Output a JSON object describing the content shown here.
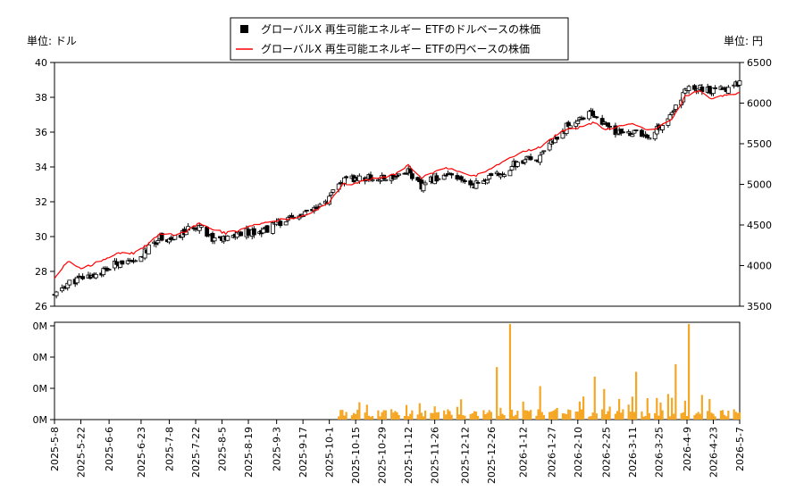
{
  "chart_data": [
    {
      "type": "candlestick+line",
      "left_unit_label": "単位: ドル",
      "right_unit_label": "単位: 円",
      "legend_placement": "top-center",
      "legend": [
        {
          "name": "グローバルX 再生可能エネルギー ETFのドルベースの株価",
          "marker": "square",
          "color": "#000000"
        },
        {
          "name": "グローバルX 再生可能エネルギー ETFの円ベースの株価",
          "marker": "line",
          "color": "#ff0000"
        }
      ],
      "ylim_left": [
        26,
        40
      ],
      "yticks_left": [
        "26",
        "28",
        "30",
        "32",
        "34",
        "36",
        "38",
        "40"
      ],
      "ylim_right": [
        3500,
        6500
      ],
      "yticks_right": [
        "3500",
        "4000",
        "4500",
        "5000",
        "5500",
        "6000",
        "6500"
      ],
      "grid": false,
      "keypoints_close_usd": [
        [
          "2025-05-08",
          26.6
        ],
        [
          "2025-05-15",
          27.3
        ],
        [
          "2025-05-22",
          27.6
        ],
        [
          "2025-05-29",
          27.8
        ],
        [
          "2025-06-05",
          28.1
        ],
        [
          "2025-06-12",
          28.6
        ],
        [
          "2025-06-19",
          28.4
        ],
        [
          "2025-06-26",
          29.2
        ],
        [
          "2025-07-03",
          30.0
        ],
        [
          "2025-07-10",
          29.8
        ],
        [
          "2025-07-17",
          30.3
        ],
        [
          "2025-07-24",
          30.7
        ],
        [
          "2025-07-31",
          29.9
        ],
        [
          "2025-08-07",
          29.8
        ],
        [
          "2025-08-14",
          30.2
        ],
        [
          "2025-08-21",
          30.3
        ],
        [
          "2025-08-28",
          30.4
        ],
        [
          "2025-09-04",
          30.8
        ],
        [
          "2025-09-11",
          31.0
        ],
        [
          "2025-09-18",
          31.3
        ],
        [
          "2025-09-25",
          31.6
        ],
        [
          "2025-10-01",
          32.2
        ],
        [
          "2025-10-08",
          33.2
        ],
        [
          "2025-10-15",
          33.3
        ],
        [
          "2025-10-22",
          33.4
        ],
        [
          "2025-10-29",
          33.3
        ],
        [
          "2025-11-05",
          33.5
        ],
        [
          "2025-11-12",
          33.8
        ],
        [
          "2025-11-19",
          32.8
        ],
        [
          "2025-11-26",
          33.4
        ],
        [
          "2025-12-03",
          33.5
        ],
        [
          "2025-12-10",
          33.2
        ],
        [
          "2025-12-17",
          33.0
        ],
        [
          "2025-12-24",
          33.3
        ],
        [
          "2025-12-31",
          33.6
        ],
        [
          "2026-01-07",
          34.1
        ],
        [
          "2026-01-14",
          34.4
        ],
        [
          "2026-01-21",
          34.5
        ],
        [
          "2026-01-28",
          35.5
        ],
        [
          "2026-02-04",
          36.3
        ],
        [
          "2026-02-11",
          36.8
        ],
        [
          "2026-02-18",
          37.1
        ],
        [
          "2026-02-25",
          36.3
        ],
        [
          "2026-03-04",
          35.9
        ],
        [
          "2026-03-11",
          36.0
        ],
        [
          "2026-03-18",
          35.7
        ],
        [
          "2026-03-25",
          36.2
        ],
        [
          "2026-04-01",
          37.0
        ],
        [
          "2026-04-08",
          38.4
        ],
        [
          "2026-04-15",
          38.6
        ],
        [
          "2026-04-22",
          38.3
        ],
        [
          "2026-04-29",
          38.5
        ],
        [
          "2026-05-07",
          38.9
        ]
      ],
      "keypoints_close_jpy": [
        [
          "2025-05-08",
          3850
        ],
        [
          "2025-05-15",
          4050
        ],
        [
          "2025-05-22",
          3970
        ],
        [
          "2025-05-29",
          4020
        ],
        [
          "2025-06-05",
          4100
        ],
        [
          "2025-06-12",
          4160
        ],
        [
          "2025-06-19",
          4150
        ],
        [
          "2025-06-26",
          4250
        ],
        [
          "2025-07-03",
          4400
        ],
        [
          "2025-07-10",
          4380
        ],
        [
          "2025-07-17",
          4420
        ],
        [
          "2025-07-24",
          4530
        ],
        [
          "2025-07-31",
          4450
        ],
        [
          "2025-08-07",
          4400
        ],
        [
          "2025-08-14",
          4430
        ],
        [
          "2025-08-21",
          4490
        ],
        [
          "2025-08-28",
          4520
        ],
        [
          "2025-09-04",
          4560
        ],
        [
          "2025-09-11",
          4580
        ],
        [
          "2025-09-18",
          4620
        ],
        [
          "2025-09-25",
          4700
        ],
        [
          "2025-10-01",
          4780
        ],
        [
          "2025-10-08",
          5000
        ],
        [
          "2025-10-15",
          5010
        ],
        [
          "2025-10-22",
          5060
        ],
        [
          "2025-10-29",
          5080
        ],
        [
          "2025-11-05",
          5130
        ],
        [
          "2025-11-12",
          5240
        ],
        [
          "2025-11-19",
          5080
        ],
        [
          "2025-11-26",
          5150
        ],
        [
          "2025-12-03",
          5200
        ],
        [
          "2025-12-10",
          5150
        ],
        [
          "2025-12-17",
          5100
        ],
        [
          "2025-12-24",
          5180
        ],
        [
          "2025-12-31",
          5250
        ],
        [
          "2026-01-07",
          5350
        ],
        [
          "2026-01-14",
          5420
        ],
        [
          "2026-01-21",
          5450
        ],
        [
          "2026-01-28",
          5580
        ],
        [
          "2026-02-04",
          5680
        ],
        [
          "2026-02-11",
          5700
        ],
        [
          "2026-02-18",
          5760
        ],
        [
          "2026-02-25",
          5680
        ],
        [
          "2026-03-04",
          5720
        ],
        [
          "2026-03-11",
          5740
        ],
        [
          "2026-03-18",
          5680
        ],
        [
          "2026-03-25",
          5700
        ],
        [
          "2026-04-01",
          5800
        ],
        [
          "2026-04-08",
          6080
        ],
        [
          "2026-04-15",
          6160
        ],
        [
          "2026-04-22",
          6050
        ],
        [
          "2026-04-29",
          6100
        ],
        [
          "2026-05-07",
          6120
        ]
      ]
    },
    {
      "type": "bar",
      "color": "#f5a623",
      "yticks": [
        "0M",
        "0M",
        "0M",
        "0M"
      ],
      "volume_active_from": "2025-10-06",
      "volume_spikes_relative": [
        [
          "2025-12-29",
          0.55
        ],
        [
          "2026-01-05",
          1.0
        ],
        [
          "2026-01-21",
          0.35
        ],
        [
          "2026-02-19",
          0.45
        ],
        [
          "2026-02-24",
          0.32
        ],
        [
          "2026-03-13",
          0.5
        ],
        [
          "2026-04-03",
          0.58
        ],
        [
          "2026-04-10",
          1.0
        ]
      ],
      "xticks": [
        "2025-5-8",
        "2025-5-22",
        "2025-6-6",
        "2025-6-23",
        "2025-7-8",
        "2025-7-22",
        "2025-8-5",
        "2025-8-19",
        "2025-9-3",
        "2025-9-17",
        "2025-10-1",
        "2025-10-15",
        "2025-10-29",
        "2025-11-12",
        "2025-11-26",
        "2025-12-12",
        "2025-12-26",
        "2026-1-12",
        "2026-1-27",
        "2026-2-10",
        "2026-2-25",
        "2026-3-11",
        "2026-3-25",
        "2026-4-9",
        "2026-4-23",
        "2026-5-7"
      ]
    }
  ]
}
